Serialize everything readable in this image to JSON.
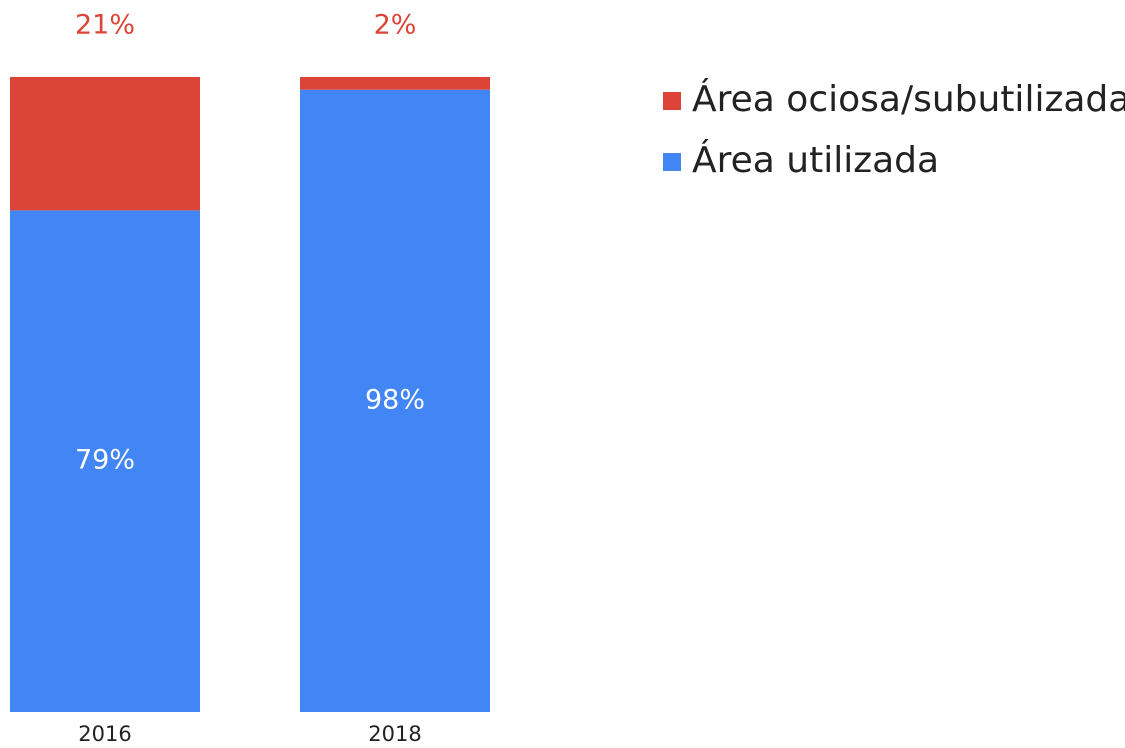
{
  "chart_data": {
    "type": "stacked_bar",
    "categories": [
      "2016",
      "2018"
    ],
    "series": [
      {
        "name": "Área ociosa/subutilizada",
        "color": "#db4437",
        "values": [
          21,
          2
        ],
        "value_labels": [
          "21%",
          "2%"
        ]
      },
      {
        "name": "Área utilizada",
        "color": "#4285f4",
        "values": [
          79,
          98
        ],
        "value_labels": [
          "79%",
          "98%"
        ]
      }
    ],
    "ylim": [
      0,
      100
    ],
    "legend": "right"
  }
}
